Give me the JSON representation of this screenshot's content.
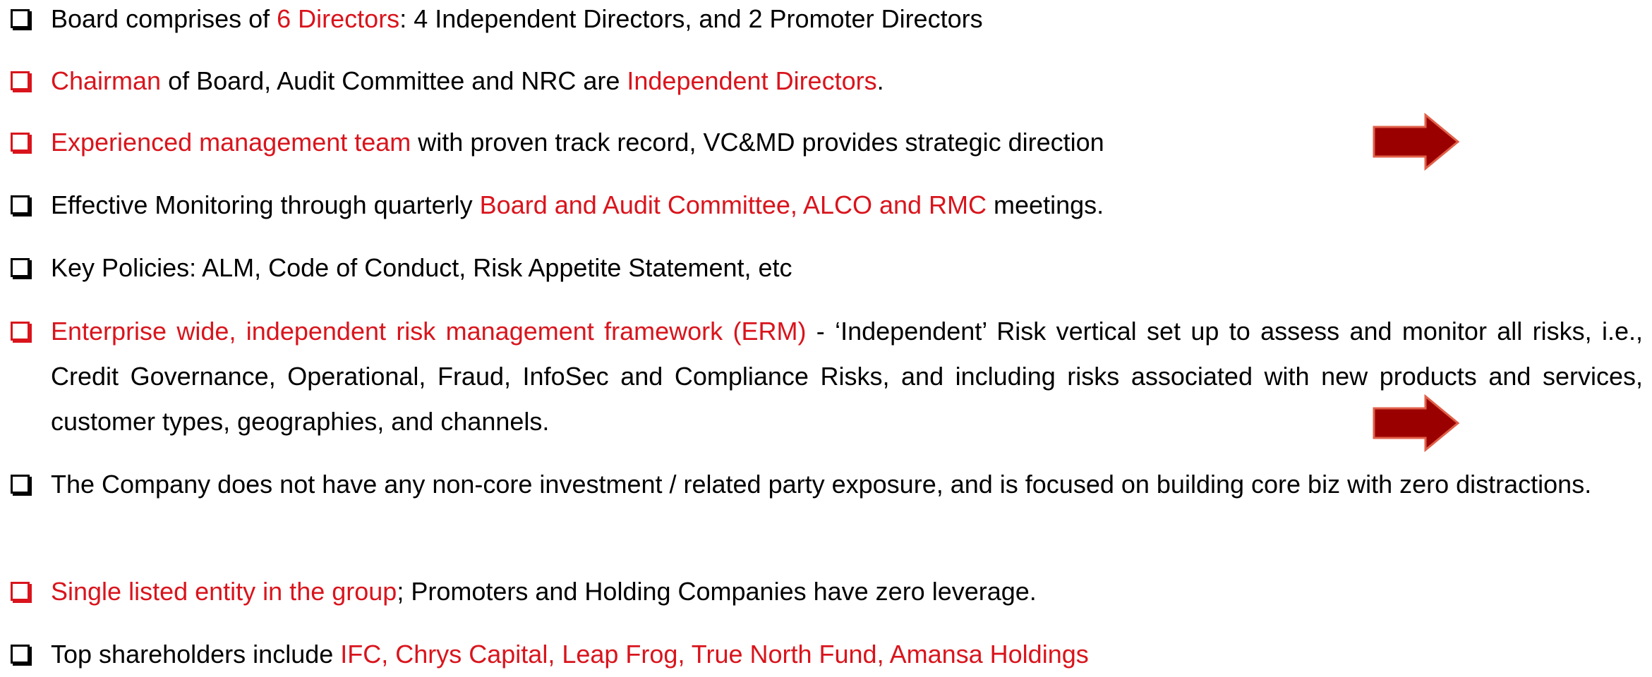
{
  "bullets": [
    {
      "red_box": false,
      "segments": [
        {
          "text": "Board comprises of "
        },
        {
          "text": "6 Directors",
          "highlight": true
        },
        {
          "text": ": 4 Independent Directors, and 2 Promoter Directors"
        }
      ]
    },
    {
      "red_box": true,
      "segments": [
        {
          "text": "Chairman",
          "highlight": true
        },
        {
          "text": " of Board, Audit Committee and NRC are "
        },
        {
          "text": "Independent Directors",
          "highlight": true
        },
        {
          "text": "."
        }
      ]
    },
    {
      "red_box": true,
      "segments": [
        {
          "text": "Experienced management team",
          "highlight": true
        },
        {
          "text": " with proven track record, VC&MD provides strategic direction"
        }
      ]
    },
    {
      "red_box": false,
      "segments": [
        {
          "text": "Effective Monitoring through quarterly "
        },
        {
          "text": "Board and Audit Committee, ALCO and RMC",
          "highlight": true
        },
        {
          "text": " meetings."
        }
      ]
    },
    {
      "red_box": false,
      "segments": [
        {
          "text": "Key Policies: ALM, Code of Conduct, Risk Appetite Statement, etc"
        }
      ]
    },
    {
      "red_box": true,
      "segments": [
        {
          "text": "Enterprise wide, independent risk management framework (ERM)",
          "highlight": true
        },
        {
          "text": " - ‘Independent’ Risk vertical set up to assess and monitor all risks, i.e., Credit Governance, Operational, Fraud, InfoSec and Compliance Risks, and including risks associated with new products and services, customer types, geographies, and channels."
        }
      ]
    },
    {
      "red_box": false,
      "segments": [
        {
          "text": "The Company does not have any non-core investment / related party exposure, and is focused on building core biz with zero distractions."
        }
      ]
    },
    {
      "red_box": true,
      "segments": [
        {
          "text": "Single listed entity in the group",
          "highlight": true
        },
        {
          "text": "; Promoters and Holding Companies have zero leverage."
        }
      ]
    },
    {
      "red_box": false,
      "segments": [
        {
          "text": "Top shareholders include "
        },
        {
          "text": "IFC, Chrys Capital, Leap Frog, True North Fund, Amansa Holdings",
          "highlight": true
        }
      ]
    }
  ]
}
